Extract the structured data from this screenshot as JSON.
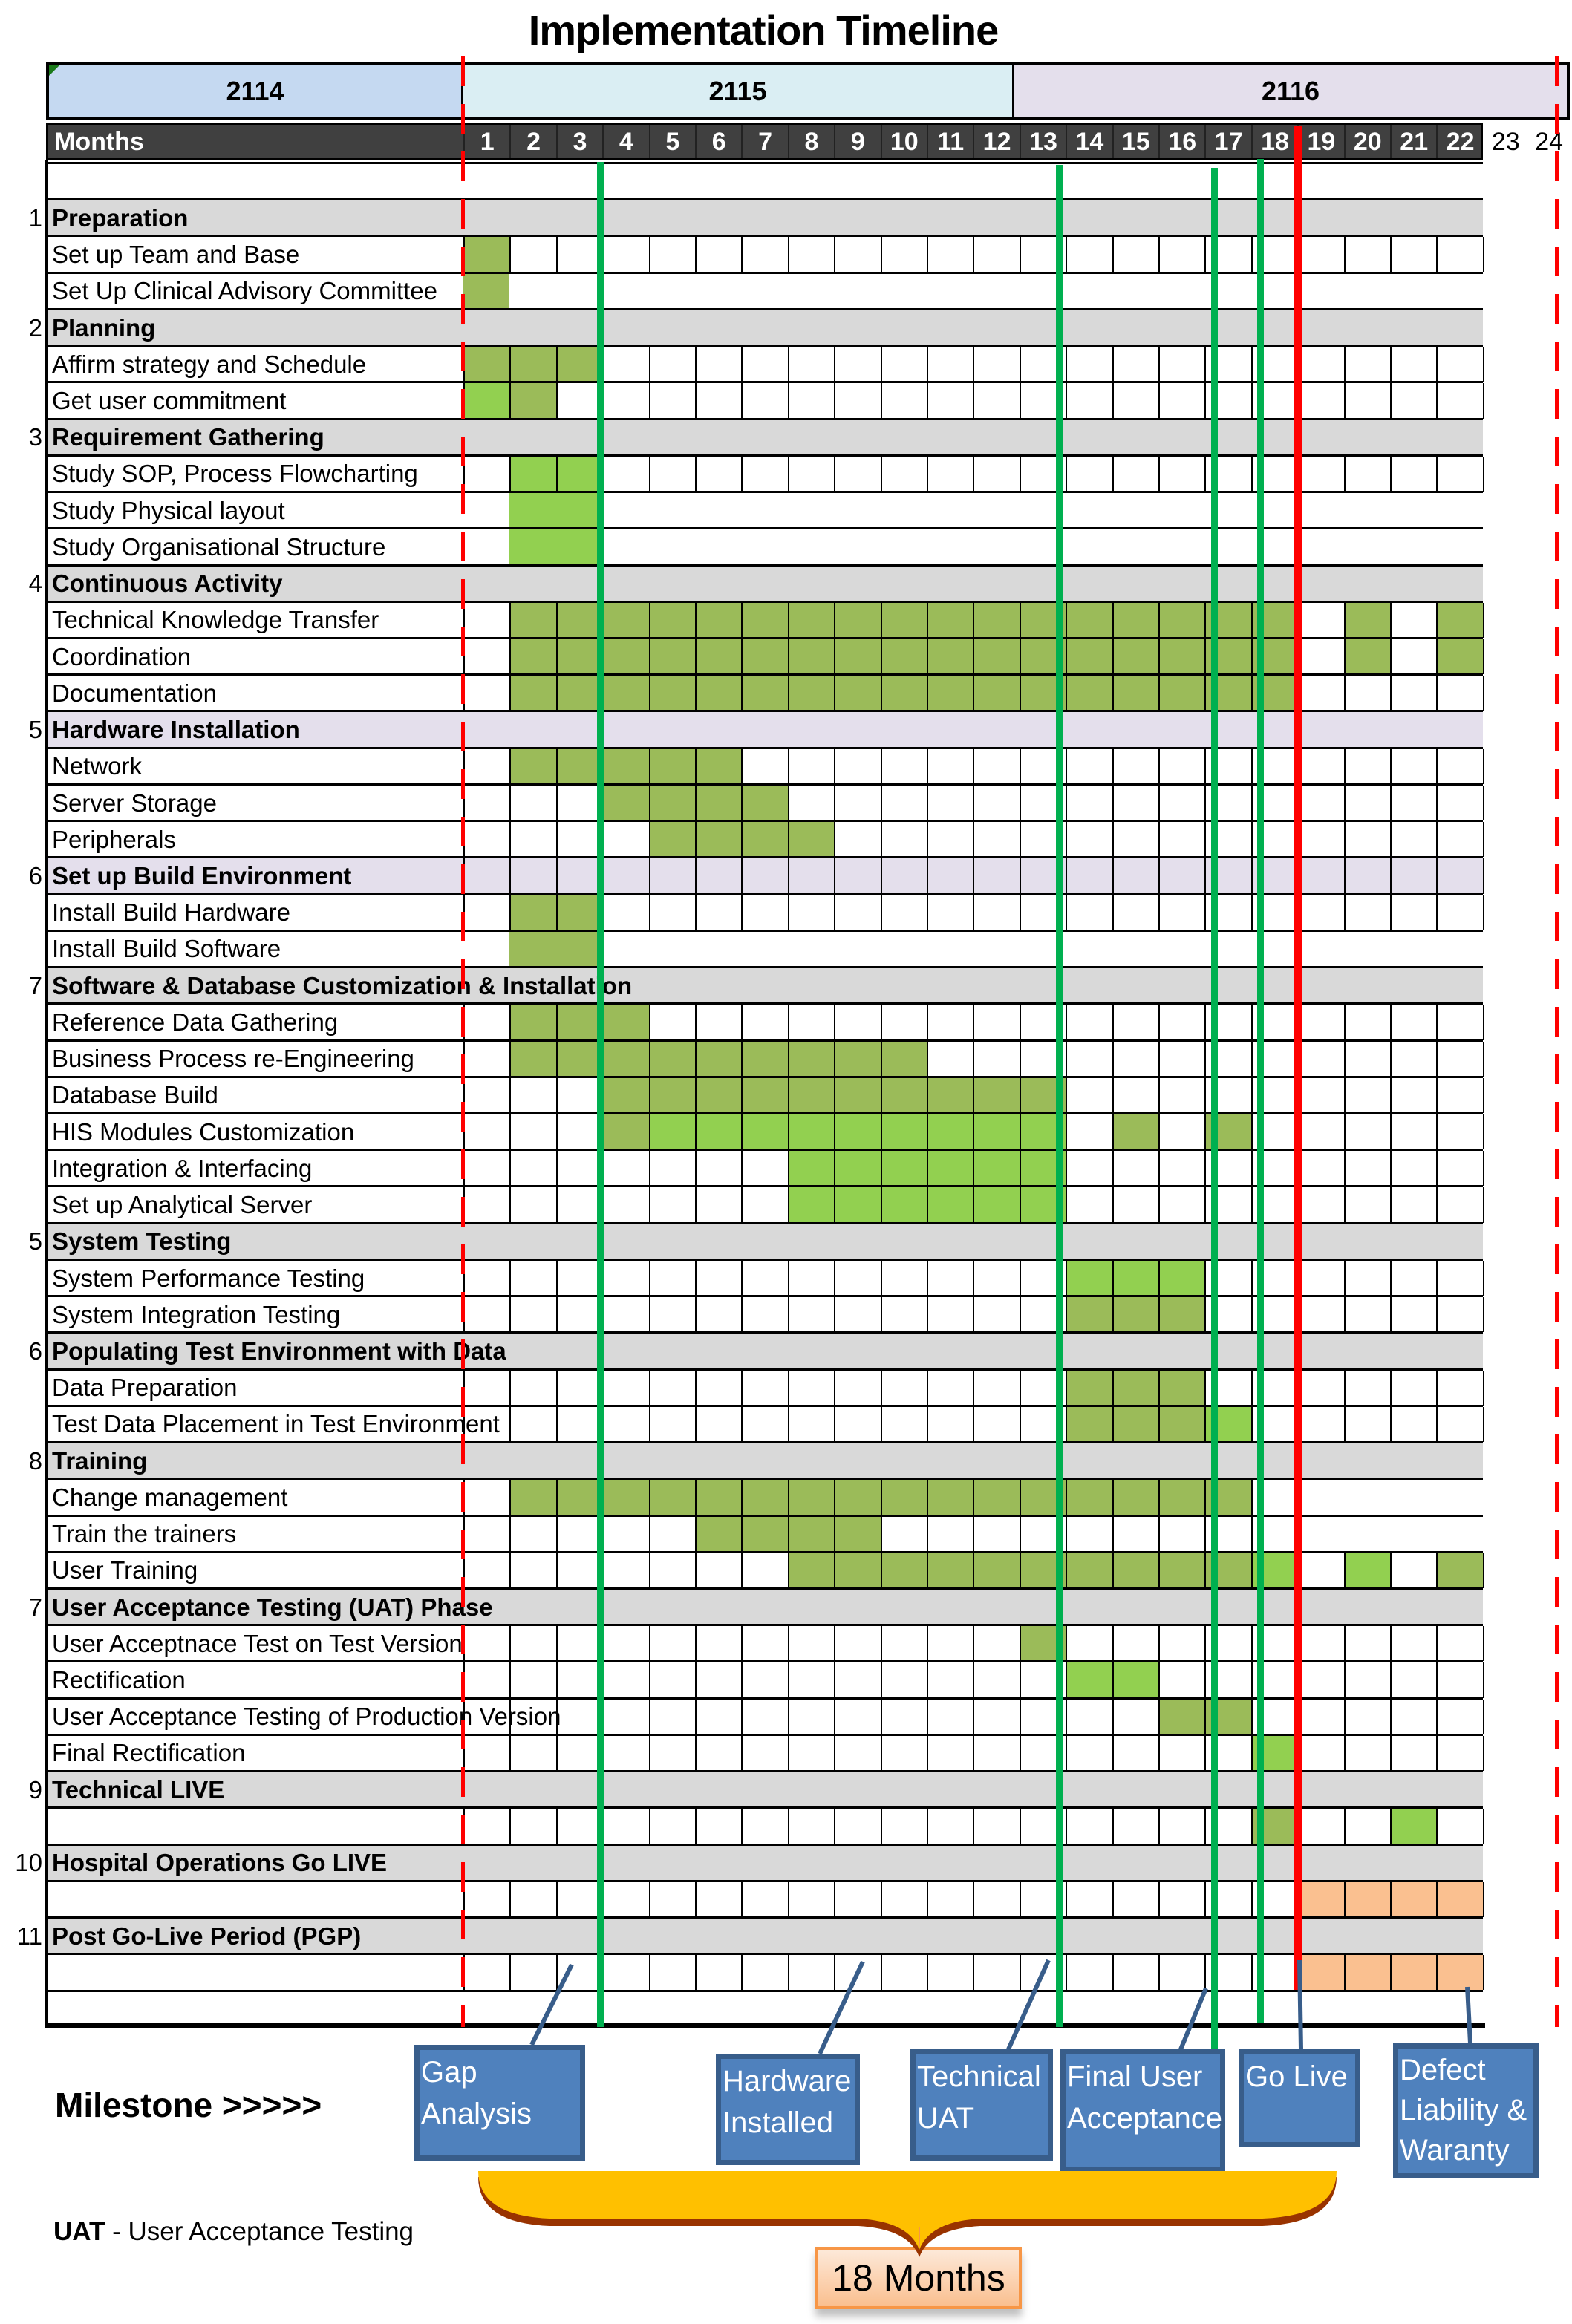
{
  "title": "Implementation Timeline",
  "colors": {
    "olive": "#9BBB59",
    "green": "#92D050",
    "peach": "#FAC090",
    "gray": "#D9D9D9",
    "lavender": "#E4DFEC",
    "year_2114": "#C5D9F1",
    "year_2115": "#DAEEF3",
    "year_2116": "#E4DFEC",
    "milestone_line": "#00B050",
    "golive_line": "#FF0000",
    "milestone_box": "#4F81BD"
  },
  "years": [
    "2114",
    "2115",
    "2116"
  ],
  "months_label": "Months",
  "months": [
    "1",
    "2",
    "3",
    "4",
    "5",
    "6",
    "7",
    "8",
    "9",
    "10",
    "11",
    "12",
    "13",
    "14",
    "15",
    "16",
    "17",
    "18",
    "19",
    "20",
    "21",
    "22",
    "23",
    "24"
  ],
  "chart_data": {
    "type": "table",
    "title": "Implementation Timeline",
    "rows": [
      {
        "kind": "blank",
        "grid": false,
        "num": "",
        "label": ""
      },
      {
        "kind": "section",
        "num": "1",
        "label": "Preparation",
        "shade": "gray"
      },
      {
        "kind": "task",
        "grid": true,
        "label": "Set up Team and Base",
        "olive": [
          1
        ]
      },
      {
        "kind": "task",
        "grid": false,
        "label": "Set Up Clinical Advisory Committee",
        "olive": [
          1
        ]
      },
      {
        "kind": "section",
        "num": "2",
        "label": "Planning",
        "shade": "gray"
      },
      {
        "kind": "task",
        "grid": true,
        "label": "Affirm strategy and Schedule",
        "olive": [
          1,
          2,
          3
        ]
      },
      {
        "kind": "task",
        "grid": true,
        "label": "Get user commitment",
        "green": [
          1
        ],
        "olive": [
          2
        ]
      },
      {
        "kind": "section",
        "num": "3",
        "label": "Requirement Gathering",
        "shade": "gray"
      },
      {
        "kind": "task",
        "grid": true,
        "label": "Study SOP, Process Flowcharting",
        "green": [
          2,
          3
        ]
      },
      {
        "kind": "task",
        "grid": false,
        "label": "Study Physical layout",
        "green": [
          2,
          3
        ]
      },
      {
        "kind": "task",
        "grid": false,
        "label": "Study Organisational Structure",
        "green": [
          2,
          3
        ]
      },
      {
        "kind": "section",
        "num": "4",
        "label": "Continuous Activity",
        "shade": "gray"
      },
      {
        "kind": "task",
        "grid": true,
        "label": "Technical Knowledge Transfer",
        "olive": [
          2,
          3,
          4,
          5,
          6,
          7,
          8,
          9,
          10,
          11,
          12,
          13,
          14,
          15,
          16,
          17,
          18,
          20,
          22
        ]
      },
      {
        "kind": "task",
        "grid": true,
        "label": "Coordination",
        "olive": [
          2,
          3,
          4,
          5,
          6,
          7,
          8,
          9,
          10,
          11,
          12,
          13,
          14,
          15,
          16,
          17,
          18,
          20,
          22
        ]
      },
      {
        "kind": "task",
        "grid": true,
        "label": "Documentation",
        "olive": [
          2,
          3,
          4,
          5,
          6,
          7,
          8,
          9,
          10,
          11,
          12,
          13,
          14,
          15,
          16,
          17,
          18
        ]
      },
      {
        "kind": "section",
        "num": "5",
        "label": "Hardware Installation",
        "shade": "lavender"
      },
      {
        "kind": "task",
        "grid": true,
        "label": "Network",
        "olive": [
          2,
          3,
          4,
          5,
          6
        ]
      },
      {
        "kind": "task",
        "grid": true,
        "label": "Server Storage",
        "olive": [
          4,
          5,
          6,
          7
        ]
      },
      {
        "kind": "task",
        "grid": true,
        "label": "Peripherals",
        "olive": [
          5,
          6,
          7,
          8
        ]
      },
      {
        "kind": "section",
        "num": "6",
        "label": "Set up Build Environment",
        "shade": "lavender",
        "grid": true
      },
      {
        "kind": "task",
        "grid": true,
        "label": "Install Build Hardware",
        "olive": [
          2,
          3
        ]
      },
      {
        "kind": "task",
        "grid": false,
        "label": "Install Build Software",
        "olive": [
          2,
          3
        ]
      },
      {
        "kind": "section",
        "num": "7",
        "label": "Software & Database Customization & Installation",
        "shade": "gray"
      },
      {
        "kind": "task",
        "grid": true,
        "label": "Reference Data Gathering",
        "olive": [
          2,
          3,
          4
        ]
      },
      {
        "kind": "task",
        "grid": true,
        "label": "Business Process re-Engineering",
        "olive": [
          2,
          3,
          4,
          5,
          6,
          7,
          8,
          9,
          10
        ]
      },
      {
        "kind": "task",
        "grid": true,
        "label": "Database Build",
        "olive": [
          4,
          5,
          6,
          7,
          8,
          9,
          10,
          11,
          12,
          13
        ]
      },
      {
        "kind": "task",
        "grid": true,
        "label": "HIS Modules Customization",
        "olive": [
          4,
          15,
          17
        ],
        "green": [
          5,
          6,
          7,
          8,
          9,
          10,
          11,
          12,
          13
        ]
      },
      {
        "kind": "task",
        "grid": true,
        "label": "Integration & Interfacing",
        "green": [
          8,
          9,
          10,
          11,
          12,
          13
        ]
      },
      {
        "kind": "task",
        "grid": true,
        "label": "Set up Analytical Server",
        "green": [
          8,
          9,
          10,
          11,
          12,
          13
        ]
      },
      {
        "kind": "section",
        "num": "5",
        "label": "System Testing",
        "shade": "gray"
      },
      {
        "kind": "task",
        "grid": true,
        "label": "System Performance Testing",
        "green": [
          14,
          15,
          16
        ]
      },
      {
        "kind": "task",
        "grid": true,
        "label": "System Integration Testing",
        "olive": [
          14,
          15,
          16
        ]
      },
      {
        "kind": "section",
        "num": "6",
        "label": "Populating Test Environment with Data",
        "shade": "gray"
      },
      {
        "kind": "task",
        "grid": true,
        "label": "Data Preparation",
        "olive": [
          14,
          15,
          16
        ]
      },
      {
        "kind": "task",
        "grid": true,
        "label": "Test Data Placement in Test Environment",
        "olive": [
          14,
          15,
          16
        ],
        "green": [
          17
        ]
      },
      {
        "kind": "section",
        "num": "8",
        "label": "Training",
        "shade": "gray"
      },
      {
        "kind": "task",
        "grid": true,
        "grid_to": 18,
        "label": "Change management",
        "olive": [
          2,
          3,
          4,
          5,
          6,
          7,
          8,
          9,
          10,
          11,
          12,
          13,
          14,
          15,
          16,
          17
        ]
      },
      {
        "kind": "task",
        "grid": true,
        "grid_to": 18,
        "label": "Train the trainers",
        "olive": [
          6,
          7,
          8,
          9
        ]
      },
      {
        "kind": "task",
        "grid": true,
        "label": "User Training",
        "olive": [
          8,
          9,
          10,
          11,
          12,
          13,
          14,
          15,
          16,
          17,
          22
        ],
        "green": [
          18,
          20
        ]
      },
      {
        "kind": "section",
        "num": "7",
        "label": "User Acceptance Testing (UAT) Phase",
        "shade": "gray"
      },
      {
        "kind": "task",
        "grid": true,
        "label": "User Acceptnace Test on Test Version",
        "olive": [
          13
        ]
      },
      {
        "kind": "task",
        "grid": true,
        "label": "Rectification",
        "green": [
          14,
          15
        ]
      },
      {
        "kind": "task",
        "grid": true,
        "label": "User Acceptance Testing of Production Version",
        "olive": [
          16,
          17
        ]
      },
      {
        "kind": "task",
        "grid": true,
        "label": "Final Rectification",
        "green": [
          18
        ]
      },
      {
        "kind": "section",
        "num": "9",
        "label": "Technical LIVE",
        "shade": "gray"
      },
      {
        "kind": "task",
        "grid": true,
        "label": "",
        "olive": [
          18
        ],
        "green": [
          21
        ]
      },
      {
        "kind": "section",
        "num": "10",
        "label": "Hospital Operations Go LIVE",
        "shade": "gray"
      },
      {
        "kind": "task",
        "grid": true,
        "label": "",
        "peach": [
          19,
          20,
          21,
          22
        ]
      },
      {
        "kind": "section",
        "num": "11",
        "label": "Post Go-Live Period (PGP)",
        "shade": "gray"
      },
      {
        "kind": "task",
        "grid": true,
        "label": "",
        "peach": [
          19,
          20,
          21,
          22
        ]
      },
      {
        "kind": "blank",
        "grid": false,
        "label": ""
      }
    ],
    "markers": [
      {
        "type": "milestone",
        "month": 2.95,
        "color": "green"
      },
      {
        "type": "milestone",
        "month": 12.85,
        "color": "green"
      },
      {
        "type": "milestone",
        "month": 16.2,
        "color": "green"
      },
      {
        "type": "milestone",
        "month": 17.2,
        "color": "green"
      },
      {
        "type": "go-live",
        "month": 18.0,
        "color": "red"
      },
      {
        "type": "project-start",
        "month": 0,
        "color": "red-dashed"
      },
      {
        "type": "project-end",
        "month": 23.6,
        "color": "red-dashed"
      }
    ]
  },
  "milestone_label": "Milestone >>>>>",
  "milestones": [
    {
      "lines": [
        "Gap",
        "Analysis"
      ]
    },
    {
      "lines": [
        "Hardware",
        "Installed"
      ]
    },
    {
      "lines": [
        "Technical",
        "UAT"
      ]
    },
    {
      "lines": [
        "Final User",
        "Acceptance"
      ]
    },
    {
      "lines": [
        "Go Live"
      ]
    },
    {
      "lines": [
        "Defect",
        "Liability &",
        "Waranty"
      ]
    }
  ],
  "duration_label": "18 Months",
  "footnote": {
    "abbr": "UAT",
    "text": " - User Acceptance Testing"
  }
}
